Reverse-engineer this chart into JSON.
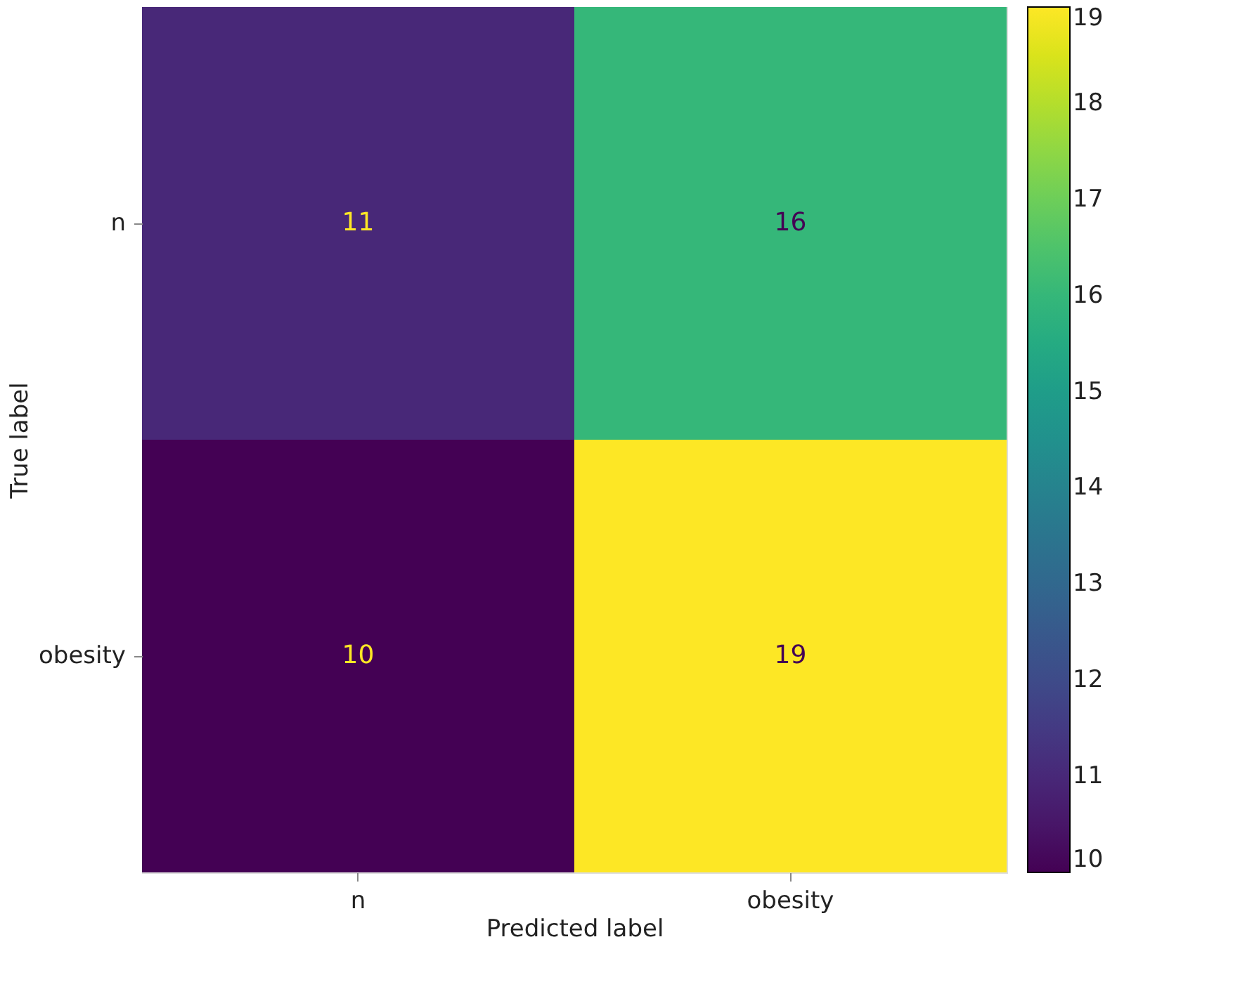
{
  "chart_data": {
    "type": "heatmap",
    "xlabel": "Predicted label",
    "ylabel": "True label",
    "categories": [
      "n",
      "obesity"
    ],
    "y_categories": [
      "n",
      "obesity"
    ],
    "cells": [
      [
        11,
        16
      ],
      [
        10,
        19
      ]
    ],
    "clim": [
      10,
      19
    ],
    "cticks": [
      10,
      11,
      12,
      13,
      14,
      15,
      16,
      17,
      18,
      19
    ],
    "data_labels": true
  }
}
